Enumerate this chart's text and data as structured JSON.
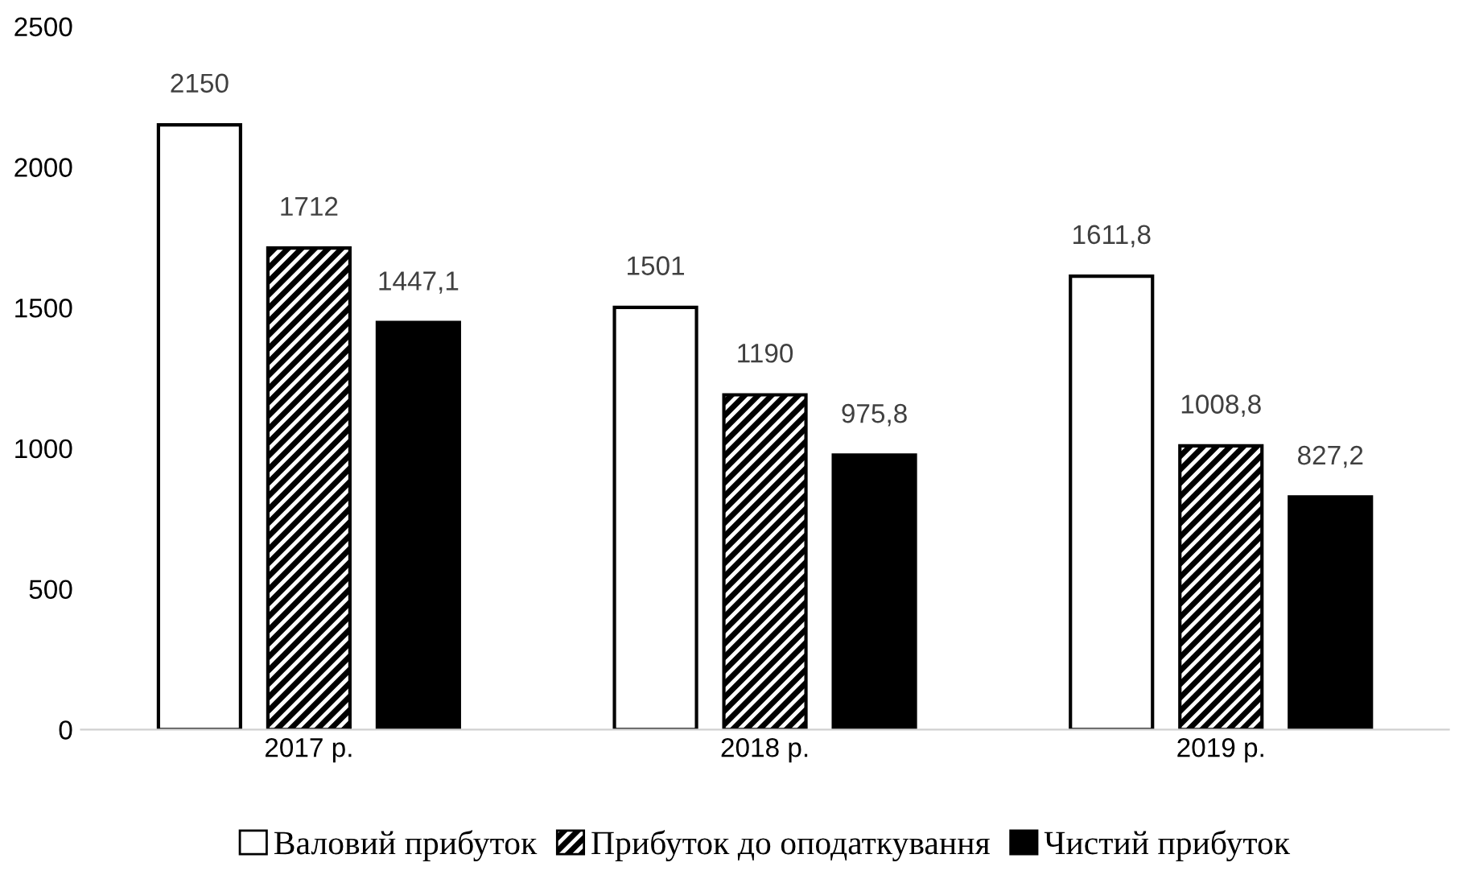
{
  "chart_data": {
    "type": "bar",
    "categories": [
      "2017 р.",
      "2018 р.",
      "2019 р."
    ],
    "series": [
      {
        "name": "Валовий прибуток",
        "color": "#ffffff",
        "values": [
          2150,
          1501,
          1611.8
        ],
        "value_labels": [
          "2150",
          "1501",
          "1611,8"
        ]
      },
      {
        "name": "Прибуток до оподаткування",
        "color": "#000000",
        "values": [
          1712,
          1190,
          1008.8
        ],
        "value_labels": [
          "1712",
          "1190",
          "1008,8"
        ]
      },
      {
        "name": "Чистий прибуток",
        "color": "#000000",
        "values": [
          1447.1,
          975.8,
          827.2
        ],
        "value_labels": [
          "1447,1",
          "975,8",
          "827,2"
        ]
      }
    ],
    "ylim": [
      0,
      2500
    ],
    "yticks": [
      0,
      500,
      1000,
      1500,
      2000,
      2500
    ],
    "grid": false,
    "legend": "bottom"
  }
}
